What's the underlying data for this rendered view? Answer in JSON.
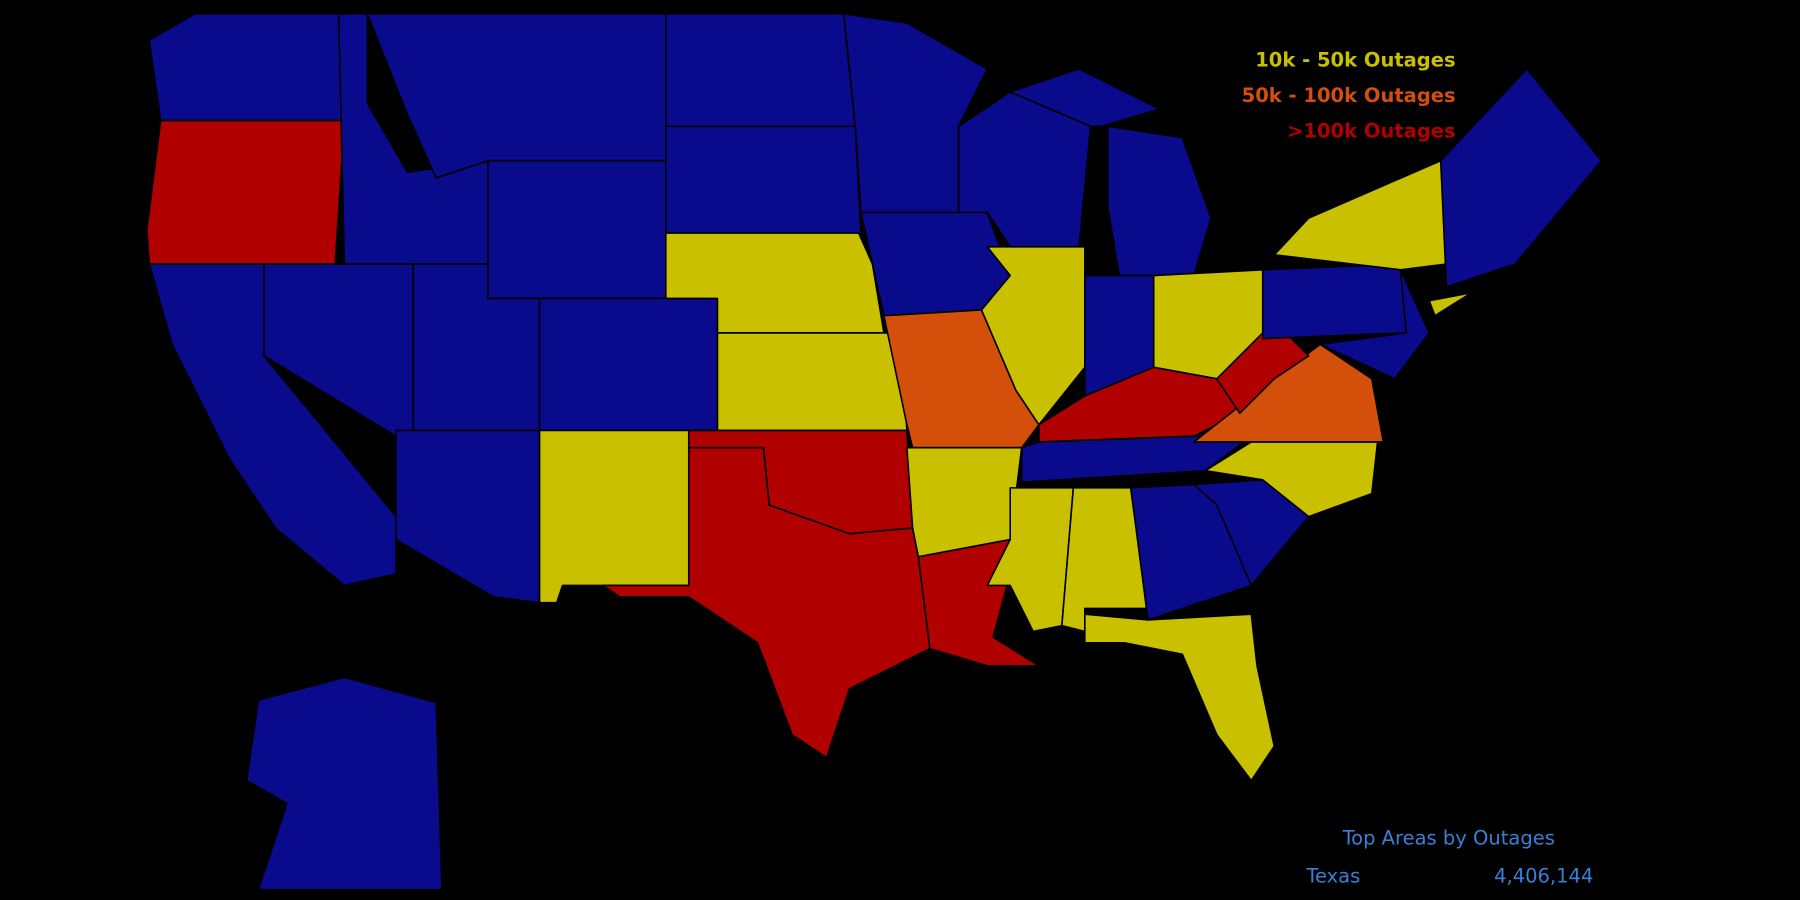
{
  "legend": {
    "items": [
      {
        "label": "10k - 50k Outages",
        "color": "#c9c100"
      },
      {
        "label": "50k - 100k Outages",
        "color": "#d4500a"
      },
      {
        "label": ">100k Outages",
        "color": "#b00000"
      }
    ]
  },
  "top_areas": {
    "title": "Top Areas by Outages",
    "rows": [
      {
        "name": "Texas",
        "value": "4,406,144"
      }
    ]
  }
}
